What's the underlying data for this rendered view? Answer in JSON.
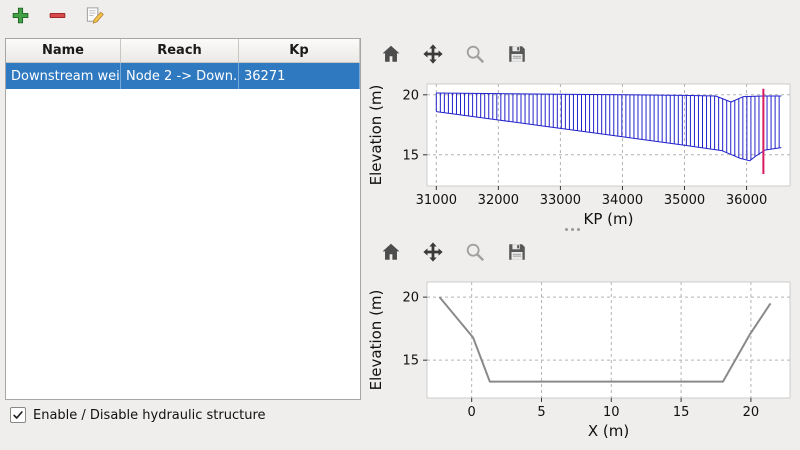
{
  "app_toolbar": {
    "buttons": [
      {
        "name": "add-structure-button",
        "icon": "plus-icon",
        "color": "#43a047"
      },
      {
        "name": "remove-structure-button",
        "icon": "minus-icon",
        "color": "#d84848"
      },
      {
        "name": "edit-structure-button",
        "icon": "edit-pencil-icon",
        "color": "#f2c14e"
      }
    ]
  },
  "structures_table": {
    "headers": [
      "Name",
      "Reach",
      "Kp"
    ],
    "rows": [
      {
        "name": "Downstream weir",
        "reach": "Node 2 -> Down...",
        "kp": "36271"
      }
    ],
    "selection_color": "#2f79c1"
  },
  "enable_checkbox": {
    "label": "Enable / Disable hydraulic structure",
    "checked": true
  },
  "plot_toolbars": {
    "icons": [
      "home-icon",
      "pan-icon",
      "zoom-icon",
      "save-icon"
    ]
  },
  "chart_data": [
    {
      "type": "line",
      "title": "",
      "xlabel": "KP (m)",
      "ylabel": "Elevation (m)",
      "xlim": [
        30850,
        36700
      ],
      "ylim": [
        12.4,
        20.9
      ],
      "xticks": [
        31000,
        32000,
        33000,
        34000,
        35000,
        36000
      ],
      "yticks": [
        15,
        20
      ],
      "grid": true,
      "series": [
        {
          "name": "top-bank-profile",
          "color": "#2222cc",
          "width": 1,
          "x": [
            31000,
            32000,
            33000,
            34000,
            35000,
            35500,
            35750,
            35950,
            36300,
            36560
          ],
          "y": [
            20.15,
            20.1,
            20.05,
            20.0,
            19.95,
            19.9,
            19.4,
            19.85,
            19.9,
            19.9
          ]
        },
        {
          "name": "bed-profile",
          "color": "#2222cc",
          "width": 1,
          "x": [
            31000,
            32000,
            33000,
            34000,
            35000,
            35600,
            35900,
            36050,
            36150,
            36300,
            36560
          ],
          "y": [
            18.6,
            17.9,
            17.2,
            16.5,
            15.8,
            15.35,
            14.7,
            14.5,
            14.9,
            15.4,
            15.6
          ]
        }
      ],
      "cross_section_hatch": {
        "from": 31000,
        "to": 36560,
        "step": 65,
        "color": "#2222cc"
      },
      "marker_line": {
        "x": 36271,
        "y0": 13.4,
        "y1": 20.5,
        "color": "#d81b60"
      }
    },
    {
      "type": "line",
      "title": "",
      "xlabel": "X (m)",
      "ylabel": "Elevation (m)",
      "xlim": [
        -3.2,
        22.8
      ],
      "ylim": [
        12.0,
        21.2
      ],
      "xticks": [
        0,
        5,
        10,
        15,
        20
      ],
      "yticks": [
        15,
        20
      ],
      "grid": true,
      "series": [
        {
          "name": "cross-section-profile",
          "color": "#8a8a8a",
          "width": 2,
          "x": [
            -2.3,
            0.1,
            1.3,
            18.0,
            19.9,
            21.4
          ],
          "y": [
            20.0,
            16.8,
            13.3,
            13.3,
            17.0,
            19.5
          ]
        }
      ]
    }
  ]
}
